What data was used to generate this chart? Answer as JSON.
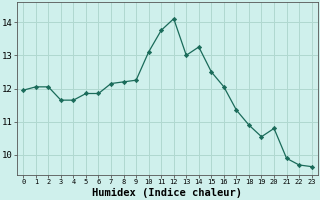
{
  "x": [
    0,
    1,
    2,
    3,
    4,
    5,
    6,
    7,
    8,
    9,
    10,
    11,
    12,
    13,
    14,
    15,
    16,
    17,
    18,
    19,
    20,
    21,
    22,
    23
  ],
  "y": [
    11.95,
    12.05,
    12.05,
    11.65,
    11.65,
    11.85,
    11.85,
    12.15,
    12.2,
    12.25,
    13.1,
    13.75,
    14.1,
    13.0,
    13.25,
    12.5,
    12.05,
    11.35,
    10.9,
    10.55,
    10.8,
    9.9,
    9.7,
    9.65
  ],
  "line_color": "#1a6b5a",
  "marker": "D",
  "marker_size": 2.2,
  "bg_color": "#cff0ec",
  "grid_color": "#b0d8d0",
  "xlabel": "Humidex (Indice chaleur)",
  "xlabel_fontsize": 7.5,
  "ylabel_ticks": [
    10,
    11,
    12,
    13,
    14
  ],
  "xlim": [
    -0.5,
    23.5
  ],
  "ylim": [
    9.4,
    14.6
  ],
  "xtick_labels": [
    "0",
    "1",
    "2",
    "3",
    "4",
    "5",
    "6",
    "7",
    "8",
    "9",
    "10",
    "11",
    "12",
    "13",
    "14",
    "15",
    "16",
    "17",
    "18",
    "19",
    "20",
    "21",
    "22",
    "23"
  ]
}
